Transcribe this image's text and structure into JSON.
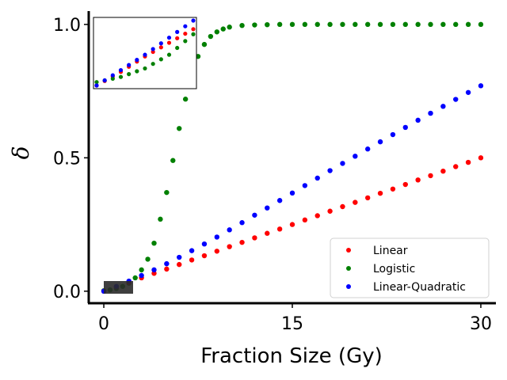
{
  "chart_data": {
    "type": "scatter",
    "xlabel": "Fraction Size (Gy)",
    "ylabel": "δ",
    "xlim": [
      -1.2,
      31.2
    ],
    "ylim": [
      -0.045,
      1.05
    ],
    "xticks": [
      {
        "value": 0,
        "label": "0"
      },
      {
        "value": 15,
        "label": "15"
      },
      {
        "value": 30,
        "label": "30"
      }
    ],
    "yticks": [
      {
        "value": 0.0,
        "label": "0.0"
      },
      {
        "value": 0.5,
        "label": "0.5"
      },
      {
        "value": 1.0,
        "label": "1.0"
      }
    ],
    "grid": false,
    "legend_position": "lower-right",
    "series": [
      {
        "name": "Linear",
        "color": "#ff0000",
        "x": [
          0,
          1,
          2,
          3,
          4,
          5,
          6,
          7,
          8,
          9,
          10,
          11,
          12,
          13,
          14,
          15,
          16,
          17,
          18,
          19,
          20,
          21,
          22,
          23,
          24,
          25,
          26,
          27,
          28,
          29,
          30
        ],
        "y": [
          0.0,
          0.017,
          0.033,
          0.05,
          0.067,
          0.083,
          0.1,
          0.117,
          0.133,
          0.15,
          0.167,
          0.183,
          0.2,
          0.217,
          0.233,
          0.25,
          0.267,
          0.283,
          0.3,
          0.317,
          0.333,
          0.35,
          0.367,
          0.383,
          0.4,
          0.417,
          0.433,
          0.45,
          0.467,
          0.483,
          0.5
        ]
      },
      {
        "name": "Logistic",
        "color": "#008000",
        "x": [
          0,
          0.5,
          1,
          1.5,
          2,
          2.5,
          3,
          3.5,
          4,
          4.5,
          5,
          5.5,
          6,
          6.5,
          7,
          7.5,
          8,
          8.5,
          9,
          9.5,
          10,
          11,
          12,
          13,
          14,
          15,
          16,
          17,
          18,
          19,
          20,
          21,
          22,
          23,
          24,
          25,
          26,
          27,
          28,
          29,
          30
        ],
        "y": [
          0.002,
          0.005,
          0.01,
          0.018,
          0.03,
          0.05,
          0.08,
          0.12,
          0.18,
          0.27,
          0.37,
          0.49,
          0.61,
          0.72,
          0.81,
          0.88,
          0.925,
          0.955,
          0.972,
          0.983,
          0.99,
          0.996,
          0.998,
          0.999,
          1.0,
          1.0,
          1.0,
          1.0,
          1.0,
          1.0,
          1.0,
          1.0,
          1.0,
          1.0,
          1.0,
          1.0,
          1.0,
          1.0,
          1.0,
          1.0,
          1.0
        ]
      },
      {
        "name": "Linear-Quadratic",
        "color": "#0000ff",
        "x": [
          0,
          1,
          2,
          3,
          4,
          5,
          6,
          7,
          8,
          9,
          10,
          11,
          12,
          13,
          14,
          15,
          16,
          17,
          18,
          19,
          20,
          21,
          22,
          23,
          24,
          25,
          26,
          27,
          28,
          29,
          30
        ],
        "y": [
          0.0,
          0.018,
          0.038,
          0.059,
          0.08,
          0.103,
          0.127,
          0.152,
          0.177,
          0.203,
          0.23,
          0.257,
          0.285,
          0.312,
          0.34,
          0.368,
          0.396,
          0.424,
          0.452,
          0.479,
          0.506,
          0.533,
          0.56,
          0.587,
          0.614,
          0.641,
          0.667,
          0.693,
          0.719,
          0.745,
          0.77
        ]
      }
    ],
    "inset": {
      "x": [
        0,
        0.5,
        1,
        1.5,
        2
      ],
      "series": [
        {
          "name": "Linear",
          "y": [
            0.0,
            0.008,
            0.017,
            0.025,
            0.033
          ]
        },
        {
          "name": "Logistic",
          "y": [
            0.002,
            0.005,
            0.01,
            0.018,
            0.03
          ]
        },
        {
          "name": "Linear-Quadratic",
          "y": [
            0.0,
            0.009,
            0.018,
            0.028,
            0.038
          ]
        }
      ]
    }
  }
}
